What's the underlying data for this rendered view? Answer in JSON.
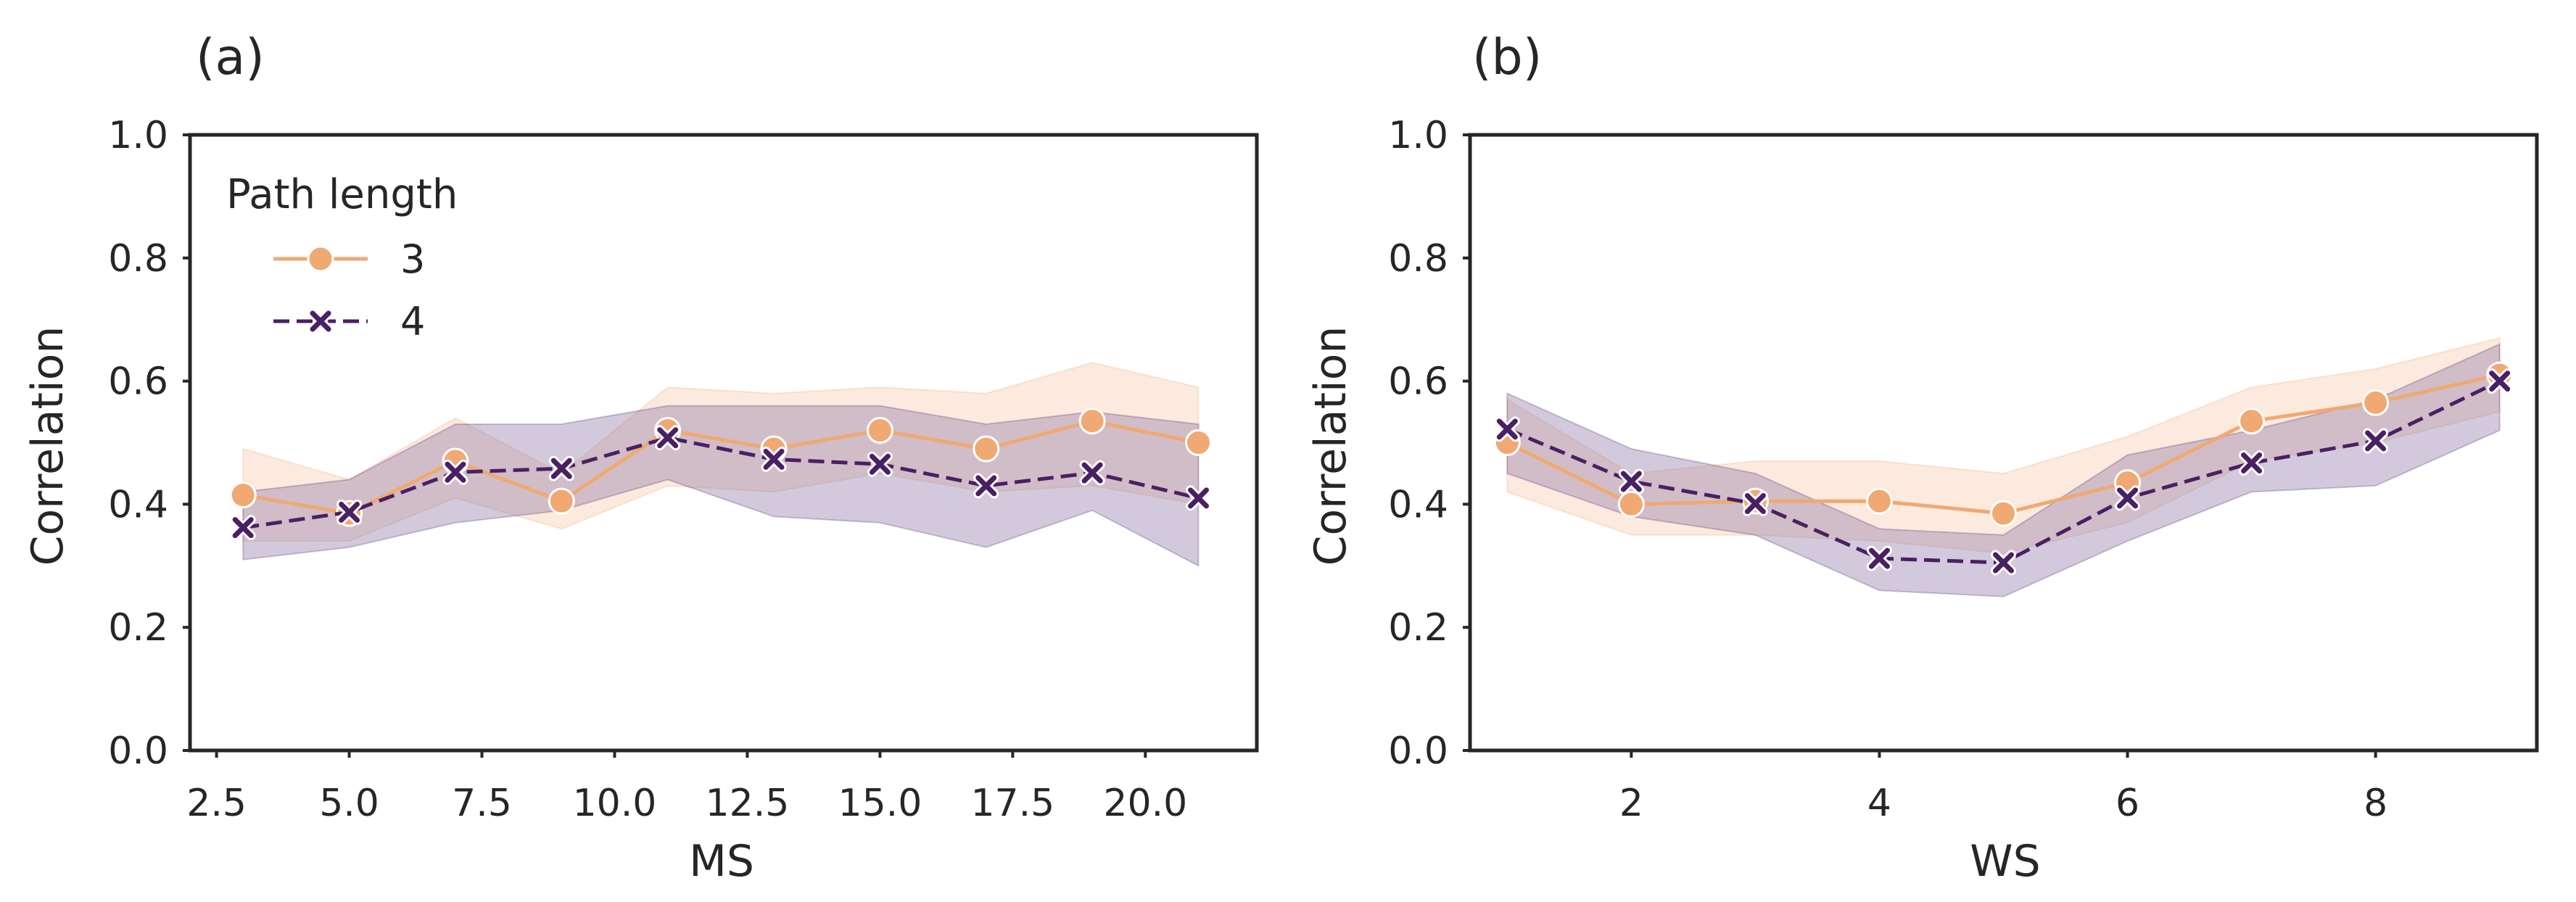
{
  "colors": {
    "series_3": "#F0A972",
    "series_4": "#4A1F63",
    "band_3": "#F8C9A8",
    "band_4": "#8E7BA8",
    "axis": "#262626"
  },
  "legend": {
    "title": "Path length",
    "entries": [
      {
        "label": "3",
        "series": "3"
      },
      {
        "label": "4",
        "series": "4"
      }
    ]
  },
  "chart_data": [
    {
      "type": "line",
      "panel_label": "(a)",
      "xlabel": "MS",
      "ylabel": "Correlation",
      "xlim": [
        2.0,
        22.1
      ],
      "ylim": [
        0.0,
        1.0
      ],
      "xticks": [
        2.5,
        5.0,
        7.5,
        10.0,
        12.5,
        15.0,
        17.5,
        20.0
      ],
      "xtick_labels": [
        "2.5",
        "5.0",
        "7.5",
        "10.0",
        "12.5",
        "15.0",
        "17.5",
        "20.0"
      ],
      "yticks": [
        0.0,
        0.2,
        0.4,
        0.6,
        0.8,
        1.0
      ],
      "ytick_labels": [
        "0.0",
        "0.2",
        "0.4",
        "0.6",
        "0.8",
        "1.0"
      ],
      "grid": false,
      "legend": "top-left",
      "x": [
        3,
        5,
        7,
        9,
        11,
        13,
        15,
        17,
        19,
        21
      ],
      "series": [
        {
          "name": "3",
          "values": [
            0.415,
            0.385,
            0.47,
            0.405,
            0.52,
            0.49,
            0.52,
            0.49,
            0.535,
            0.5
          ],
          "ci_low": [
            0.34,
            0.34,
            0.41,
            0.36,
            0.43,
            0.42,
            0.45,
            0.42,
            0.43,
            0.4
          ],
          "ci_high": [
            0.49,
            0.44,
            0.54,
            0.45,
            0.59,
            0.58,
            0.59,
            0.58,
            0.63,
            0.59
          ]
        },
        {
          "name": "4",
          "values": [
            0.362,
            0.387,
            0.452,
            0.458,
            0.508,
            0.473,
            0.465,
            0.43,
            0.451,
            0.41
          ],
          "ci_low": [
            0.31,
            0.33,
            0.37,
            0.39,
            0.44,
            0.38,
            0.37,
            0.33,
            0.39,
            0.3
          ],
          "ci_high": [
            0.42,
            0.44,
            0.53,
            0.53,
            0.56,
            0.56,
            0.56,
            0.53,
            0.55,
            0.53
          ]
        }
      ]
    },
    {
      "type": "line",
      "panel_label": "(b)",
      "xlabel": "WS",
      "ylabel": "Correlation",
      "xlim": [
        0.7,
        9.3
      ],
      "ylim": [
        0.0,
        1.0
      ],
      "xticks": [
        2,
        4,
        6,
        8
      ],
      "xtick_labels": [
        "2",
        "4",
        "6",
        "8"
      ],
      "yticks": [
        0.0,
        0.2,
        0.4,
        0.6,
        0.8,
        1.0
      ],
      "ytick_labels": [
        "0.0",
        "0.2",
        "0.4",
        "0.6",
        "0.8",
        "1.0"
      ],
      "grid": false,
      "x": [
        1,
        2,
        3,
        4,
        5,
        6,
        7,
        8,
        9
      ],
      "series": [
        {
          "name": "3",
          "values": [
            0.5,
            0.4,
            0.405,
            0.405,
            0.385,
            0.435,
            0.535,
            0.565,
            0.61
          ],
          "ci_low": [
            0.42,
            0.35,
            0.35,
            0.34,
            0.32,
            0.37,
            0.47,
            0.5,
            0.55
          ],
          "ci_high": [
            0.57,
            0.45,
            0.47,
            0.47,
            0.45,
            0.51,
            0.59,
            0.62,
            0.67
          ]
        },
        {
          "name": "4",
          "values": [
            0.522,
            0.437,
            0.401,
            0.312,
            0.305,
            0.41,
            0.467,
            0.503,
            0.6
          ],
          "ci_low": [
            0.45,
            0.38,
            0.35,
            0.26,
            0.25,
            0.34,
            0.42,
            0.43,
            0.52
          ],
          "ci_high": [
            0.58,
            0.49,
            0.45,
            0.36,
            0.35,
            0.48,
            0.52,
            0.57,
            0.66
          ]
        }
      ]
    }
  ]
}
